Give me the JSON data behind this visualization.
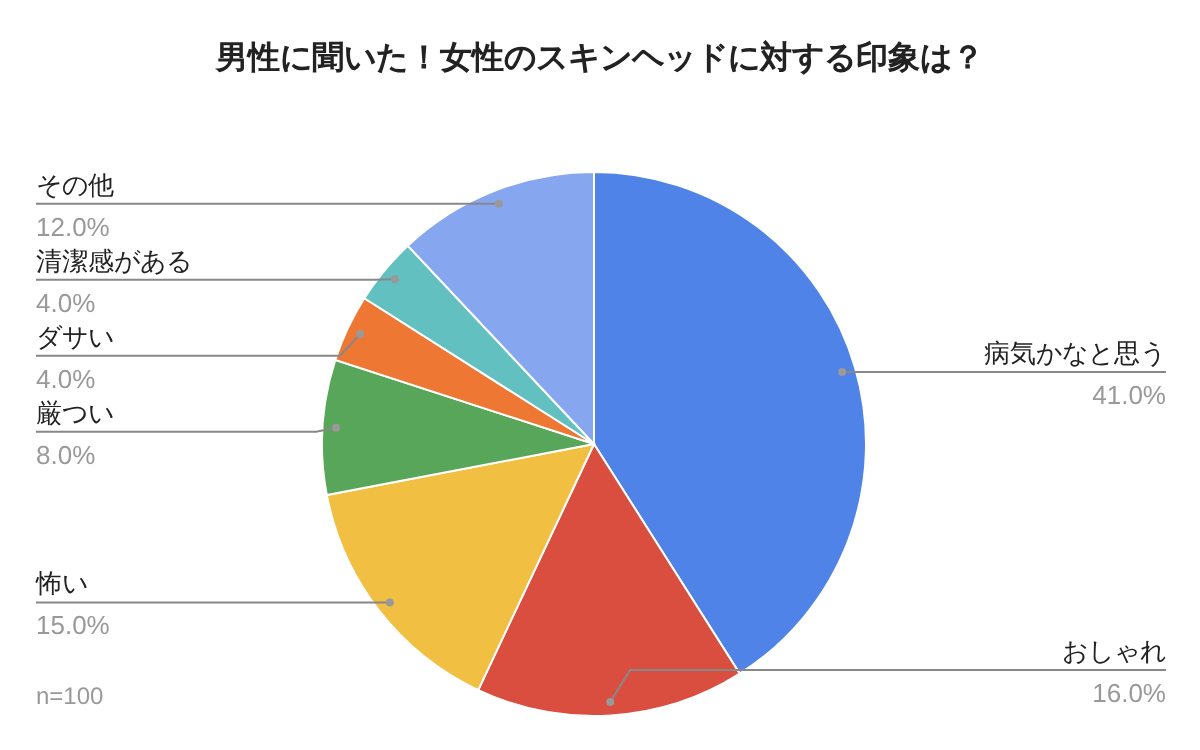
{
  "chart_data": {
    "type": "pie",
    "title": "男性に聞いた！女性のスキンヘッドに対する印象は？",
    "categories": [
      "病気かなと思う",
      "おしゃれ",
      "怖い",
      "厳つい",
      "ダサい",
      "清潔感がある",
      "その他"
    ],
    "values": [
      41,
      16,
      15,
      8,
      4,
      4,
      12
    ],
    "value_labels": [
      "41.0%",
      "16.0%",
      "15.0%",
      "8.0%",
      "4.0%",
      "4.0%",
      "12.0%"
    ],
    "colors": [
      "#5083e8",
      "#da4e3f",
      "#f1bf42",
      "#58a65a",
      "#ed7733",
      "#63c0c0",
      "#86a7ef"
    ],
    "annotations": [
      "n=100"
    ]
  }
}
